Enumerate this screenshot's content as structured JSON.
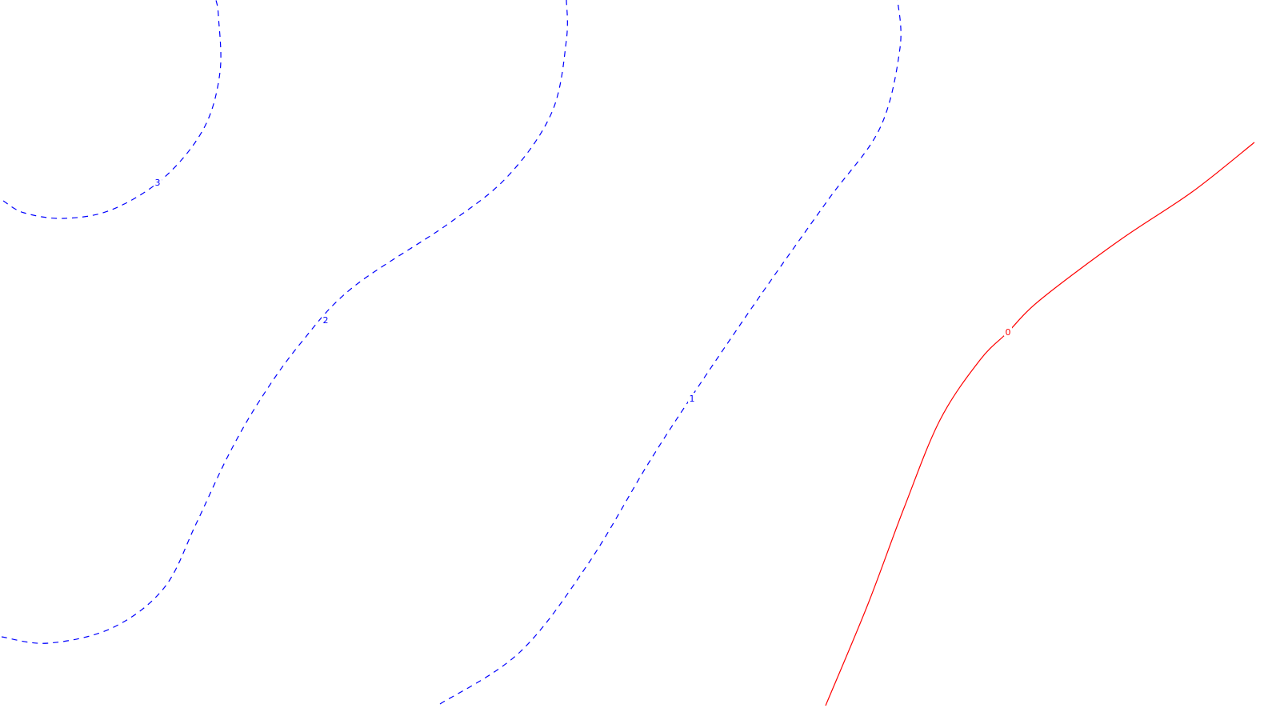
{
  "chart_data": {
    "type": "contour",
    "title": "",
    "xlabel": "",
    "ylabel": "",
    "grid": false,
    "legend": "none",
    "colors": {
      "negative": "#0000ff",
      "zero": "#ff0000",
      "background": "#ffffff"
    },
    "levels": [
      {
        "label": "3",
        "value": 3,
        "color": "#0000ff",
        "dashed": true,
        "path": [
          [
            4,
            251
          ],
          [
            30,
            266
          ],
          [
            80,
            273
          ],
          [
            140,
            262
          ],
          [
            205,
            222
          ],
          [
            255,
            160
          ],
          [
            275,
            90
          ],
          [
            273,
            20
          ],
          [
            270,
            0
          ]
        ]
      },
      {
        "label": "2",
        "value": 2,
        "color": "#0000ff",
        "dashed": true,
        "path": [
          [
            2,
            796
          ],
          [
            60,
            804
          ],
          [
            140,
            785
          ],
          [
            205,
            735
          ],
          [
            245,
            655
          ],
          [
            285,
            570
          ],
          [
            325,
            500
          ],
          [
            375,
            430
          ],
          [
            440,
            360
          ],
          [
            560,
            280
          ],
          [
            635,
            220
          ],
          [
            690,
            140
          ],
          [
            708,
            50
          ],
          [
            708,
            0
          ]
        ]
      },
      {
        "label": "1",
        "value": 1,
        "color": "#0000ff",
        "dashed": true,
        "path": [
          [
            550,
            880
          ],
          [
            650,
            815
          ],
          [
            735,
            705
          ],
          [
            810,
            580
          ],
          [
            865,
            495
          ],
          [
            950,
            370
          ],
          [
            1035,
            250
          ],
          [
            1100,
            160
          ],
          [
            1125,
            60
          ],
          [
            1122,
            0
          ]
        ]
      },
      {
        "label": "0",
        "value": 0,
        "color": "#ff0000",
        "dashed": false,
        "path": [
          [
            1032,
            882
          ],
          [
            1085,
            755
          ],
          [
            1130,
            635
          ],
          [
            1175,
            525
          ],
          [
            1225,
            450
          ],
          [
            1260,
            415
          ],
          [
            1300,
            375
          ],
          [
            1400,
            300
          ],
          [
            1490,
            240
          ],
          [
            1568,
            178
          ]
        ]
      }
    ],
    "labels": [
      {
        "text": "3",
        "level": 3,
        "color": "#0000ff",
        "pos": [
          197,
          228
        ]
      },
      {
        "text": "2",
        "level": 2,
        "color": "#0000ff",
        "pos": [
          407,
          400
        ]
      },
      {
        "text": "1",
        "level": 1,
        "color": "#0000ff",
        "pos": [
          865,
          498
        ]
      },
      {
        "text": "0",
        "level": 0,
        "color": "#ff0000",
        "pos": [
          1260,
          415
        ]
      }
    ]
  }
}
